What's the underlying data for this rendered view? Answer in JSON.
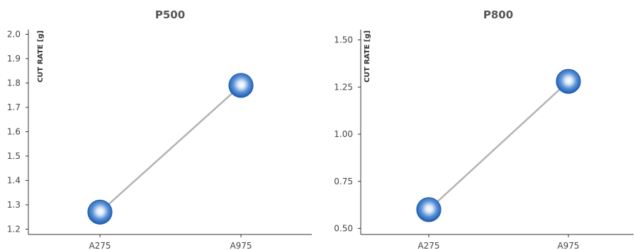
{
  "chart_data": [
    {
      "type": "line",
      "title": "P500",
      "ylabel": "CUT RATE [g]",
      "xlabel": "",
      "categories": [
        "A275",
        "A975"
      ],
      "values": [
        1.27,
        1.79
      ],
      "ylim": [
        1.2,
        2.0
      ],
      "yticks": [
        "1.2",
        "1.3",
        "1.4",
        "1.5",
        "1.6",
        "1.7",
        "1.8",
        "1.9",
        "2.0"
      ],
      "grid": false,
      "marker_color": "#1f5fb4",
      "line_color": "#b3b3b3"
    },
    {
      "type": "line",
      "title": "P800",
      "ylabel": "CUT RATE [g]",
      "xlabel": "",
      "categories": [
        "A275",
        "A975"
      ],
      "values": [
        0.6,
        1.28
      ],
      "ylim": [
        0.5,
        1.5
      ],
      "yticks": [
        "0.50",
        "0.75",
        "1.00",
        "1.25",
        "1.50"
      ],
      "grid": false,
      "marker_color": "#1f5fb4",
      "line_color": "#b3b3b3"
    }
  ]
}
